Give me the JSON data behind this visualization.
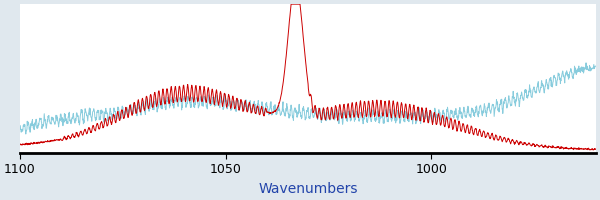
{
  "xlim": [
    1100,
    960
  ],
  "ylim": [
    -0.02,
    1.0
  ],
  "xlabel": "Wavenumbers",
  "xlabel_color": "#2244aa",
  "xticks": [
    1100,
    1050,
    1000
  ],
  "background_color": "#ffffff",
  "outer_bg": "#e0e8ee",
  "red_line_color": "#cc0000",
  "cyan_line_color": "#88ccdd",
  "red_linewidth": 0.7,
  "cyan_linewidth": 0.7,
  "figsize": [
    6.0,
    2.0
  ],
  "dpi": 100
}
